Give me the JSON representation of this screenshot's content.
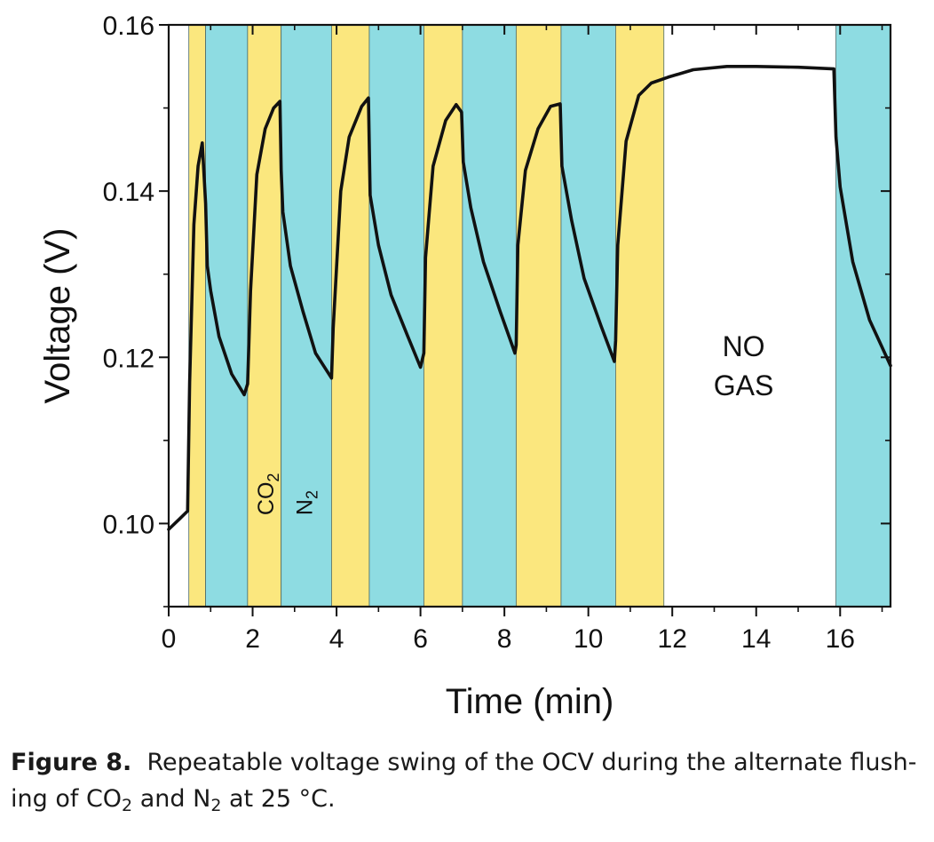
{
  "chart_data": {
    "type": "line",
    "xlabel": "Time (min)",
    "ylabel": "Voltage (V)",
    "xlim": [
      0,
      17.2
    ],
    "ylim": [
      0.09,
      0.16
    ],
    "x_ticks": [
      "0",
      "2",
      "4",
      "6",
      "8",
      "10",
      "12",
      "14",
      "16"
    ],
    "y_ticks": [
      "0.10",
      "0.12",
      "0.14",
      "0.16"
    ],
    "band_colors": {
      "CO2": "#fbe77e",
      "N2": "#8edce2"
    },
    "bands": [
      {
        "gas": "CO2",
        "start": 0.48,
        "end": 0.88
      },
      {
        "gas": "N2",
        "start": 0.88,
        "end": 1.88
      },
      {
        "gas": "CO2",
        "start": 1.88,
        "end": 2.68
      },
      {
        "gas": "N2",
        "start": 2.68,
        "end": 3.88
      },
      {
        "gas": "CO2",
        "start": 3.88,
        "end": 4.78
      },
      {
        "gas": "N2",
        "start": 4.78,
        "end": 6.08
      },
      {
        "gas": "CO2",
        "start": 6.08,
        "end": 7.0
      },
      {
        "gas": "N2",
        "start": 7.0,
        "end": 8.28
      },
      {
        "gas": "CO2",
        "start": 8.28,
        "end": 9.35
      },
      {
        "gas": "N2",
        "start": 9.35,
        "end": 10.65
      },
      {
        "gas": "CO2",
        "start": 10.65,
        "end": 11.8
      },
      {
        "gas": "N2",
        "start": 15.9,
        "end": 17.2
      }
    ],
    "band_labels": [
      {
        "text": "CO",
        "sub": "2",
        "x": 2.28,
        "y": 0.101
      },
      {
        "text": "N",
        "sub": "2",
        "x": 3.2,
        "y": 0.101
      }
    ],
    "annotation": {
      "lines": [
        "NO",
        "GAS"
      ],
      "x": 13.7,
      "y": 0.1195
    },
    "series": [
      {
        "color": "#111111",
        "x": [
          0,
          0.25,
          0.45,
          0.5,
          0.6,
          0.7,
          0.8,
          0.88,
          0.92,
          1.0,
          1.2,
          1.5,
          1.8,
          1.88,
          1.95,
          2.1,
          2.3,
          2.5,
          2.65,
          2.68,
          2.72,
          2.9,
          3.2,
          3.5,
          3.88,
          3.92,
          4.1,
          4.3,
          4.6,
          4.76,
          4.8,
          5.0,
          5.3,
          5.7,
          6.0,
          6.08,
          6.12,
          6.3,
          6.6,
          6.85,
          6.98,
          7.02,
          7.2,
          7.5,
          7.9,
          8.25,
          8.28,
          8.32,
          8.5,
          8.8,
          9.1,
          9.33,
          9.37,
          9.6,
          9.9,
          10.3,
          10.62,
          10.65,
          10.7,
          10.9,
          11.2,
          11.5,
          11.9,
          12.5,
          13.3,
          14.0,
          15.0,
          15.85,
          15.9,
          16.0,
          16.3,
          16.7,
          17.2
        ],
        "y": [
          0.0993,
          0.1005,
          0.1015,
          0.117,
          0.136,
          0.143,
          0.1458,
          0.1385,
          0.131,
          0.128,
          0.1225,
          0.118,
          0.1155,
          0.1168,
          0.128,
          0.142,
          0.1475,
          0.15,
          0.1508,
          0.1425,
          0.1375,
          0.131,
          0.1255,
          0.1205,
          0.1175,
          0.1235,
          0.14,
          0.1465,
          0.1502,
          0.1512,
          0.1395,
          0.1335,
          0.1275,
          0.1225,
          0.1188,
          0.1205,
          0.132,
          0.143,
          0.1485,
          0.1504,
          0.1495,
          0.1435,
          0.138,
          0.1315,
          0.1255,
          0.1205,
          0.1215,
          0.1335,
          0.1425,
          0.1475,
          0.1502,
          0.1505,
          0.143,
          0.1365,
          0.1295,
          0.1238,
          0.1195,
          0.122,
          0.1335,
          0.146,
          0.1515,
          0.153,
          0.1537,
          0.1546,
          0.155,
          0.155,
          0.1549,
          0.1547,
          0.1465,
          0.1405,
          0.1315,
          0.1245,
          0.119
        ]
      }
    ]
  },
  "caption": {
    "label": "Figure 8.",
    "text_a": "Repeatable voltage swing of the OCV during the alternate flush-ing of CO",
    "sub_a": "2",
    "text_b": "and N",
    "sub_b": "2",
    "text_c": "at 25 °C."
  }
}
